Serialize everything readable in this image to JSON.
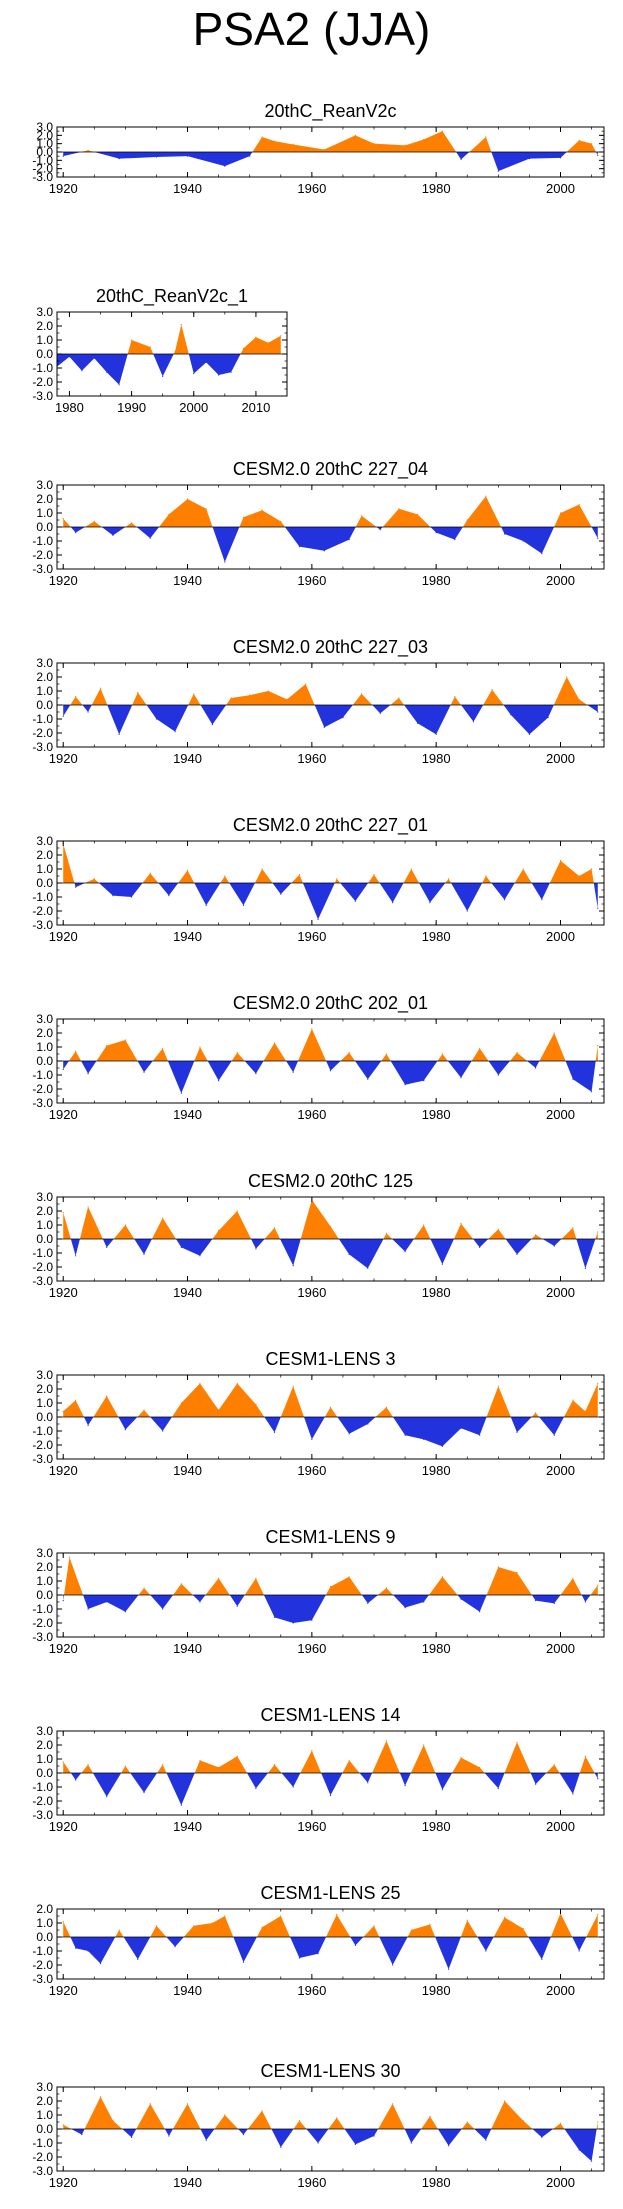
{
  "title": "PSA2 (JJA)",
  "colors": {
    "positive": "#ff8000",
    "negative": "#2233dd"
  },
  "chart_data": [
    {
      "type": "area",
      "title": "20thC_ReanV2c",
      "ylim": [
        -3,
        3
      ],
      "yticks": [
        "3.0",
        "2.0",
        "1.0",
        "0.0",
        "-1.0",
        "-2.0",
        "-3.0"
      ],
      "xlim": [
        1919,
        2007
      ],
      "xticks": [
        1920,
        1940,
        1960,
        1980,
        2000
      ],
      "x": [
        1920,
        1924,
        1929,
        1935,
        1940,
        1946,
        1950,
        1952,
        1954,
        1957,
        1962,
        1967,
        1970,
        1975,
        1978,
        1981,
        1984,
        1988,
        1990,
        1995,
        2000,
        2003,
        2005,
        2006
      ],
      "values": [
        -0.5,
        0.2,
        -0.8,
        -0.6,
        -0.5,
        -1.7,
        -0.5,
        1.8,
        1.3,
        0.9,
        0.3,
        2.0,
        1.0,
        0.8,
        1.5,
        2.5,
        -0.9,
        1.8,
        -2.3,
        -0.8,
        -0.7,
        1.4,
        1.0,
        -0.4
      ]
    },
    {
      "type": "area",
      "title": "20thC_ReanV2c_1",
      "ylim": [
        -3,
        3
      ],
      "yticks": [
        "3.0",
        "2.0",
        "1.0",
        "0.0",
        "-1.0",
        "-2.0",
        "-3.0"
      ],
      "xlim": [
        1978,
        2015
      ],
      "xticks": [
        1980,
        1990,
        2000,
        2010
      ],
      "x": [
        1978,
        1980,
        1982,
        1984,
        1986,
        1988,
        1990,
        1993,
        1995,
        1997,
        1998,
        2000,
        2002,
        2004,
        2006,
        2008,
        2010,
        2012,
        2014
      ],
      "values": [
        -0.9,
        -0.2,
        -1.2,
        -0.3,
        -1.3,
        -2.2,
        1.0,
        0.5,
        -1.6,
        0.2,
        2.1,
        -1.4,
        -0.6,
        -1.5,
        -1.3,
        0.4,
        1.2,
        0.8,
        1.3
      ]
    },
    {
      "type": "area",
      "title": "CESM2.0 20thC 227_04",
      "ylim": [
        -3,
        3
      ],
      "yticks": [
        "3.0",
        "2.0",
        "1.0",
        "0.0",
        "-1.0",
        "-2.0",
        "-3.0"
      ],
      "xlim": [
        1919,
        2007
      ],
      "xticks": [
        1920,
        1940,
        1960,
        1980,
        2000
      ],
      "x": [
        1920,
        1922,
        1925,
        1928,
        1931,
        1934,
        1937,
        1940,
        1943,
        1946,
        1949,
        1952,
        1955,
        1958,
        1962,
        1966,
        1968,
        1971,
        1974,
        1977,
        1980,
        1983,
        1985,
        1988,
        1991,
        1994,
        1997,
        2000,
        2003,
        2006
      ],
      "values": [
        0.6,
        -0.4,
        0.4,
        -0.6,
        0.3,
        -0.8,
        0.9,
        2.0,
        1.3,
        -2.5,
        0.7,
        1.2,
        0.4,
        -1.4,
        -1.7,
        -0.9,
        0.8,
        -0.2,
        1.3,
        0.9,
        -0.4,
        -0.9,
        0.5,
        2.2,
        -0.5,
        -1.0,
        -1.9,
        1.0,
        1.6,
        -0.8
      ]
    },
    {
      "type": "area",
      "title": "CESM2.0 20thC 227_03",
      "ylim": [
        -3,
        3
      ],
      "yticks": [
        "3.0",
        "2.0",
        "1.0",
        "0.0",
        "-1.0",
        "-2.0",
        "-3.0"
      ],
      "xlim": [
        1919,
        2007
      ],
      "xticks": [
        1920,
        1940,
        1960,
        1980,
        2000
      ],
      "x": [
        1920,
        1922,
        1924,
        1926,
        1929,
        1932,
        1935,
        1938,
        1941,
        1944,
        1947,
        1950,
        1953,
        1956,
        1959,
        1962,
        1965,
        1968,
        1971,
        1974,
        1977,
        1980,
        1983,
        1986,
        1989,
        1992,
        1995,
        1998,
        2001,
        2003,
        2006
      ],
      "values": [
        -0.8,
        0.6,
        -0.5,
        1.2,
        -2.1,
        0.9,
        -1.0,
        -1.9,
        0.8,
        -1.4,
        0.5,
        0.7,
        1.0,
        0.4,
        1.5,
        -1.6,
        -0.9,
        0.8,
        -0.6,
        0.5,
        -1.3,
        -2.1,
        0.6,
        -1.2,
        1.1,
        -0.7,
        -2.1,
        -0.9,
        2.0,
        0.4,
        -0.5
      ]
    },
    {
      "type": "area",
      "title": "CESM2.0 20thC 227_01",
      "ylim": [
        -3,
        3
      ],
      "yticks": [
        "3.0",
        "2.0",
        "1.0",
        "0.0",
        "-1.0",
        "-2.0",
        "-3.0"
      ],
      "xlim": [
        1919,
        2007
      ],
      "xticks": [
        1920,
        1940,
        1960,
        1980,
        2000
      ],
      "x": [
        1920,
        1922,
        1925,
        1928,
        1931,
        1934,
        1937,
        1940,
        1943,
        1946,
        1949,
        1952,
        1955,
        1958,
        1961,
        1964,
        1967,
        1970,
        1973,
        1976,
        1979,
        1982,
        1985,
        1988,
        1991,
        1994,
        1997,
        2000,
        2003,
        2005,
        2006
      ],
      "values": [
        2.8,
        -0.3,
        0.3,
        -0.9,
        -1.0,
        0.7,
        -0.9,
        0.9,
        -1.6,
        0.5,
        -1.6,
        1.0,
        -0.8,
        0.6,
        -2.6,
        0.3,
        -1.3,
        0.6,
        -1.4,
        1.0,
        -1.4,
        0.3,
        -2.0,
        0.5,
        -1.2,
        1.0,
        -1.2,
        1.6,
        0.5,
        1.0,
        -1.8
      ]
    },
    {
      "type": "area",
      "title": "CESM2.0 20thC 202_01",
      "ylim": [
        -3,
        3
      ],
      "yticks": [
        "3.0",
        "2.0",
        "1.0",
        "0.0",
        "-1.0",
        "-2.0",
        "-3.0"
      ],
      "xlim": [
        1919,
        2007
      ],
      "xticks": [
        1920,
        1940,
        1960,
        1980,
        2000
      ],
      "x": [
        1920,
        1922,
        1924,
        1927,
        1930,
        1933,
        1936,
        1939,
        1942,
        1945,
        1948,
        1951,
        1954,
        1957,
        1960,
        1963,
        1966,
        1969,
        1972,
        1975,
        1978,
        1981,
        1984,
        1987,
        1990,
        1993,
        1996,
        1999,
        2002,
        2005,
        2006
      ],
      "values": [
        -0.6,
        0.7,
        -0.9,
        1.1,
        1.5,
        -0.8,
        0.9,
        -2.3,
        1.0,
        -1.4,
        0.6,
        -0.9,
        1.3,
        -0.8,
        2.3,
        -0.7,
        0.6,
        -1.3,
        0.5,
        -1.7,
        -1.4,
        0.5,
        -1.2,
        0.9,
        -1.0,
        0.6,
        -0.5,
        2.0,
        -1.3,
        -2.2,
        1.1
      ]
    },
    {
      "type": "area",
      "title": "CESM2.0 20thC 125",
      "ylim": [
        -3,
        3
      ],
      "yticks": [
        "3.0",
        "2.0",
        "1.0",
        "0.0",
        "-1.0",
        "-2.0",
        "-3.0"
      ],
      "xlim": [
        1919,
        2007
      ],
      "xticks": [
        1920,
        1940,
        1960,
        1980,
        2000
      ],
      "x": [
        1920,
        1922,
        1924,
        1927,
        1930,
        1933,
        1936,
        1939,
        1942,
        1945,
        1948,
        1951,
        1954,
        1957,
        1960,
        1963,
        1966,
        1969,
        1972,
        1975,
        1978,
        1981,
        1984,
        1987,
        1990,
        1993,
        1996,
        1999,
        2002,
        2004,
        2006
      ],
      "values": [
        1.9,
        -1.2,
        2.3,
        -0.6,
        1.0,
        -1.1,
        1.5,
        -0.6,
        -1.2,
        0.6,
        2.0,
        -0.7,
        0.8,
        -1.9,
        2.8,
        0.9,
        -1.1,
        -2.1,
        0.4,
        -0.9,
        1.0,
        -1.8,
        1.1,
        -0.6,
        0.7,
        -1.1,
        0.3,
        -0.5,
        0.8,
        -2.1,
        0.5
      ]
    },
    {
      "type": "area",
      "title": "CESM1-LENS 3",
      "ylim": [
        -3,
        3
      ],
      "yticks": [
        "3.0",
        "2.0",
        "1.0",
        "0.0",
        "-1.0",
        "-2.0",
        "-3.0"
      ],
      "xlim": [
        1919,
        2007
      ],
      "xticks": [
        1920,
        1940,
        1960,
        1980,
        2000
      ],
      "x": [
        1920,
        1922,
        1924,
        1927,
        1930,
        1933,
        1936,
        1939,
        1942,
        1945,
        1948,
        1951,
        1954,
        1957,
        1960,
        1963,
        1966,
        1969,
        1972,
        1975,
        1978,
        1981,
        1984,
        1987,
        1990,
        1993,
        1996,
        1999,
        2002,
        2004,
        2006
      ],
      "values": [
        0.4,
        1.2,
        -0.6,
        1.5,
        -0.9,
        0.5,
        -1.0,
        1.0,
        2.4,
        0.5,
        2.4,
        0.9,
        -1.1,
        2.2,
        -1.6,
        0.7,
        -1.2,
        -0.5,
        0.7,
        -1.3,
        -1.6,
        -2.1,
        -0.8,
        -1.3,
        2.2,
        -1.1,
        0.3,
        -1.3,
        1.2,
        0.4,
        2.4
      ]
    },
    {
      "type": "area",
      "title": "CESM1-LENS 9",
      "ylim": [
        -3,
        3
      ],
      "yticks": [
        "3.0",
        "2.0",
        "1.0",
        "0.0",
        "-1.0",
        "-2.0",
        "-3.0"
      ],
      "xlim": [
        1919,
        2007
      ],
      "xticks": [
        1920,
        1940,
        1960,
        1980,
        2000
      ],
      "x": [
        1920,
        1921,
        1924,
        1927,
        1930,
        1933,
        1936,
        1939,
        1942,
        1945,
        1948,
        1951,
        1954,
        1957,
        1960,
        1963,
        1966,
        1969,
        1972,
        1975,
        1978,
        1981,
        1984,
        1987,
        1990,
        1993,
        1996,
        1999,
        2002,
        2004,
        2006
      ],
      "values": [
        -0.4,
        2.7,
        -1.0,
        -0.5,
        -1.2,
        0.5,
        -1.0,
        0.8,
        -0.5,
        1.2,
        -0.8,
        1.2,
        -1.6,
        -2.0,
        -1.8,
        0.6,
        1.3,
        -0.6,
        0.5,
        -0.9,
        -0.5,
        1.3,
        -0.3,
        -1.2,
        2.0,
        1.6,
        -0.4,
        -0.6,
        1.2,
        -0.5,
        0.7
      ]
    },
    {
      "type": "area",
      "title": "CESM1-LENS 14",
      "ylim": [
        -3,
        3
      ],
      "yticks": [
        "3.0",
        "2.0",
        "1.0",
        "0.0",
        "-1.0",
        "-2.0",
        "-3.0"
      ],
      "xlim": [
        1919,
        2007
      ],
      "xticks": [
        1920,
        1940,
        1960,
        1980,
        2000
      ],
      "x": [
        1920,
        1922,
        1924,
        1927,
        1930,
        1933,
        1936,
        1939,
        1942,
        1945,
        1948,
        1951,
        1954,
        1957,
        1960,
        1963,
        1966,
        1969,
        1972,
        1975,
        1978,
        1981,
        1984,
        1987,
        1990,
        1993,
        1996,
        1999,
        2002,
        2004,
        2006
      ],
      "values": [
        0.8,
        -0.5,
        0.6,
        -1.7,
        0.5,
        -1.4,
        0.6,
        -2.3,
        0.9,
        0.4,
        1.2,
        -1.1,
        0.6,
        -1.0,
        1.6,
        -1.6,
        0.9,
        -0.7,
        2.3,
        -0.9,
        2.0,
        -1.2,
        1.1,
        0.4,
        -1.1,
        2.2,
        -0.8,
        0.6,
        -1.5,
        1.2,
        -0.4
      ]
    },
    {
      "type": "area",
      "title": "CESM1-LENS 25",
      "ylim": [
        -3,
        2
      ],
      "yticks": [
        "2.0",
        "1.0",
        "0.0",
        "-1.0",
        "-2.0",
        "-3.0"
      ],
      "xlim": [
        1919,
        2007
      ],
      "xticks": [
        1920,
        1940,
        1960,
        1980,
        2000
      ],
      "x": [
        1920,
        1922,
        1924,
        1926,
        1929,
        1932,
        1935,
        1938,
        1941,
        1944,
        1946,
        1949,
        1952,
        1955,
        1958,
        1961,
        1964,
        1967,
        1970,
        1973,
        1976,
        1979,
        1982,
        1985,
        1988,
        1991,
        1994,
        1997,
        2000,
        2003,
        2006
      ],
      "values": [
        1.1,
        -0.8,
        -1.0,
        -1.9,
        0.5,
        -1.6,
        0.8,
        -0.7,
        0.8,
        1.0,
        1.5,
        -1.8,
        0.7,
        1.5,
        -1.5,
        -1.2,
        1.6,
        -0.6,
        0.8,
        -2.0,
        0.5,
        0.9,
        -2.3,
        1.2,
        -1.0,
        1.4,
        0.6,
        -1.6,
        1.7,
        -1.0,
        1.6
      ]
    },
    {
      "type": "area",
      "title": "CESM1-LENS 30",
      "ylim": [
        -3,
        3
      ],
      "yticks": [
        "3.0",
        "2.0",
        "1.0",
        "0.0",
        "-1.0",
        "-2.0",
        "-3.0"
      ],
      "xlim": [
        1919,
        2007
      ],
      "xticks": [
        1920,
        1940,
        1960,
        1980,
        2000
      ],
      "x": [
        1920,
        1923,
        1926,
        1928,
        1931,
        1934,
        1937,
        1940,
        1943,
        1946,
        1949,
        1952,
        1955,
        1958,
        1961,
        1964,
        1967,
        1970,
        1973,
        1976,
        1979,
        1982,
        1985,
        1988,
        1991,
        1994,
        1997,
        2000,
        2003,
        2005,
        2006
      ],
      "values": [
        0.3,
        -0.4,
        2.3,
        0.6,
        -0.6,
        1.8,
        -0.5,
        1.8,
        -0.8,
        1.0,
        -0.4,
        1.3,
        -1.3,
        0.6,
        -1.0,
        0.8,
        -1.1,
        -0.5,
        1.8,
        -1.0,
        0.9,
        -1.2,
        0.5,
        -0.8,
        2.0,
        0.6,
        -0.6,
        0.4,
        -1.5,
        -2.3,
        0.5
      ]
    }
  ]
}
